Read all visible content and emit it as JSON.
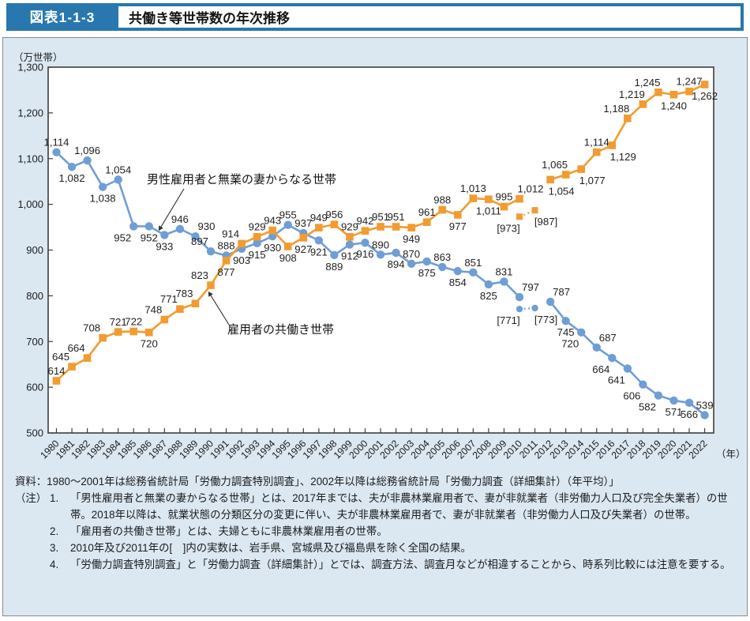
{
  "header": {
    "tag": "図表1-1-3",
    "title": "共働き等世帯数の年次推移"
  },
  "colors": {
    "header_blue": "#2878af",
    "panel_bg": "#dbe8f2",
    "series_blue": "#6f9ed7",
    "series_orange": "#f29b30"
  },
  "chart_data": {
    "type": "line",
    "y_axis": {
      "unit": "（万世帯）",
      "min": 500,
      "max": 1300,
      "step": 100
    },
    "x_axis": {
      "suffix": "（年）",
      "years": [
        1980,
        1981,
        1982,
        1983,
        1984,
        1985,
        1986,
        1987,
        1988,
        1989,
        1990,
        1991,
        1992,
        1993,
        1994,
        1995,
        1996,
        1997,
        1998,
        1999,
        2000,
        2001,
        2002,
        2003,
        2004,
        2005,
        2006,
        2007,
        2008,
        2009,
        2010,
        2011,
        2012,
        2013,
        2014,
        2015,
        2016,
        2017,
        2018,
        2019,
        2020,
        2021,
        2022
      ]
    },
    "point_format": [
      "year",
      "value",
      "label",
      "label_pos"
    ],
    "series": [
      {
        "name": "男性雇用者と無業の妻からなる世帯",
        "color": "#6f9ed7",
        "marker": "circle",
        "points": [
          [
            1980,
            1114,
            "1,114",
            "a"
          ],
          [
            1981,
            1082,
            "1,082",
            "b"
          ],
          [
            1982,
            1096,
            "1,096",
            "a"
          ],
          [
            1983,
            1038,
            "1,038",
            "b"
          ],
          [
            1984,
            1054,
            "1,054",
            "a"
          ],
          [
            1985,
            952,
            "952",
            "bl"
          ],
          [
            1986,
            952,
            "952",
            "b"
          ],
          [
            1987,
            933,
            "933",
            "b"
          ],
          [
            1988,
            946,
            "946",
            "a"
          ],
          [
            1989,
            930,
            "930",
            "ar"
          ],
          [
            1990,
            897,
            "897",
            "al"
          ],
          [
            1991,
            888,
            "888",
            "a"
          ],
          [
            1992,
            903,
            "903",
            "b"
          ],
          [
            1993,
            915,
            "915",
            "b"
          ],
          [
            1994,
            930,
            "930",
            "b"
          ],
          [
            1995,
            955,
            "955",
            "a"
          ],
          [
            1996,
            937,
            "937",
            "a"
          ],
          [
            1997,
            921,
            "921",
            "b"
          ],
          [
            1998,
            889,
            "889",
            "b"
          ],
          [
            1999,
            912,
            "912",
            "b"
          ],
          [
            2000,
            916,
            "916",
            "b"
          ],
          [
            2001,
            890,
            "890",
            "a"
          ],
          [
            2002,
            894,
            "894",
            "b"
          ],
          [
            2003,
            870,
            "870",
            "a"
          ],
          [
            2004,
            875,
            "875",
            "b"
          ],
          [
            2005,
            863,
            "863",
            "a"
          ],
          [
            2006,
            854,
            "854",
            "b"
          ],
          [
            2007,
            851,
            "851",
            "a"
          ],
          [
            2008,
            825,
            "825",
            "b"
          ],
          [
            2009,
            831,
            "831",
            "a"
          ],
          [
            2010,
            797,
            "797",
            "ar"
          ],
          [
            2012,
            787,
            "787",
            "ar"
          ],
          [
            2013,
            745,
            "745",
            "b"
          ],
          [
            2014,
            720,
            "720",
            "bl"
          ],
          [
            2015,
            687,
            "687",
            "ar"
          ],
          [
            2016,
            664,
            "664",
            "bl"
          ],
          [
            2017,
            641,
            "641",
            "bl"
          ],
          [
            2018,
            606,
            "606",
            "bl"
          ],
          [
            2019,
            582,
            "582",
            "bl"
          ],
          [
            2020,
            571,
            "571",
            "b"
          ],
          [
            2021,
            566,
            "566",
            "b"
          ],
          [
            2022,
            539,
            "539",
            "a"
          ]
        ],
        "bracket_points": [
          [
            2010,
            771,
            "[771]",
            "bl"
          ],
          [
            2011,
            773,
            "[773]",
            "br"
          ]
        ]
      },
      {
        "name": "雇用者の共働き世帯",
        "color": "#f29b30",
        "marker": "square",
        "points": [
          [
            1980,
            614,
            "614",
            "a"
          ],
          [
            1981,
            645,
            "645",
            "al"
          ],
          [
            1982,
            664,
            "664",
            "al"
          ],
          [
            1983,
            708,
            "708",
            "al"
          ],
          [
            1984,
            721,
            "721",
            "a"
          ],
          [
            1985,
            722,
            "722",
            "a"
          ],
          [
            1986,
            720,
            "720",
            "b"
          ],
          [
            1987,
            748,
            "748",
            "al"
          ],
          [
            1988,
            771,
            "771",
            "al"
          ],
          [
            1989,
            783,
            "783",
            "al"
          ],
          [
            1990,
            823,
            "823",
            "al"
          ],
          [
            1991,
            877,
            "877",
            "b"
          ],
          [
            1992,
            914,
            "914",
            "al"
          ],
          [
            1993,
            929,
            "929",
            "a"
          ],
          [
            1994,
            943,
            "943",
            "a"
          ],
          [
            1995,
            908,
            "908",
            "b"
          ],
          [
            1996,
            927,
            "927",
            "b"
          ],
          [
            1997,
            949,
            "949",
            "a"
          ],
          [
            1998,
            956,
            "956",
            "a"
          ],
          [
            1999,
            929,
            "929",
            "a"
          ],
          [
            2000,
            942,
            "942",
            "a"
          ],
          [
            2001,
            951,
            "951",
            "a"
          ],
          [
            2002,
            951,
            "951",
            "a"
          ],
          [
            2003,
            949,
            "949",
            "b"
          ],
          [
            2004,
            961,
            "961",
            "a"
          ],
          [
            2005,
            988,
            "988",
            "a"
          ],
          [
            2006,
            977,
            "977",
            "b"
          ],
          [
            2007,
            1013,
            "1,013",
            "a"
          ],
          [
            2008,
            1011,
            "1,011",
            "b"
          ],
          [
            2009,
            995,
            "995",
            "a"
          ],
          [
            2010,
            1012,
            "1,012",
            "ar"
          ],
          [
            2012,
            1054,
            "1,054",
            "br"
          ],
          [
            2013,
            1065,
            "1,065",
            "al"
          ],
          [
            2014,
            1077,
            "1,077",
            "br"
          ],
          [
            2015,
            1114,
            "1,114",
            "a"
          ],
          [
            2016,
            1129,
            "1,129",
            "br"
          ],
          [
            2017,
            1188,
            "1,188",
            "al"
          ],
          [
            2018,
            1219,
            "1,219",
            "al"
          ],
          [
            2019,
            1245,
            "1,245",
            "al"
          ],
          [
            2020,
            1240,
            "1,240",
            "b"
          ],
          [
            2021,
            1247,
            "1,247",
            "a"
          ],
          [
            2022,
            1262,
            "1,262",
            "b"
          ]
        ],
        "bracket_points": [
          [
            2010,
            973,
            "[973]",
            "bl"
          ],
          [
            2011,
            987,
            "[987]",
            "br"
          ]
        ]
      }
    ]
  },
  "footer": {
    "source": "資料：1980〜2001年は総務省統計局「労働力調査特別調査」、2002年以降は総務省統計局「労働力調査（詳細集計）（年平均）」",
    "note_label": "（注）",
    "notes": [
      {
        "num": "1.",
        "text": "「男性雇用者と無業の妻からなる世帯」とは、2017年までは、夫が非農林業雇用者で、妻が非就業者（非労働力人口及び完全失業者）の世帯。2018年以降は、就業状態の分類区分の変更に伴い、夫が非農林業雇用者で、妻が非就業者（非労働力人口及び失業者）の世帯。"
      },
      {
        "num": "2.",
        "text": "「雇用者の共働き世帯」とは、夫婦ともに非農林業雇用者の世帯。"
      },
      {
        "num": "3.",
        "text": "2010年及び2011年の[　]内の実数は、岩手県、宮城県及び福島県を除く全国の結果。"
      },
      {
        "num": "4.",
        "text": "「労働力調査特別調査」と「労働力調査（詳細集計）」とでは、調査方法、調査月などが相違することから、時系列比較には注意を要する。"
      }
    ]
  }
}
